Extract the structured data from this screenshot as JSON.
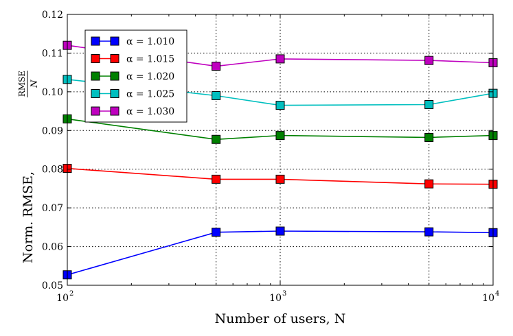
{
  "chart_data": {
    "type": "line",
    "title": "",
    "xlabel": "Number of users, N",
    "ylabel": "Norm. RMSE, RMSE / N",
    "ylabel_parts": {
      "main": "Norm. RMSE,",
      "numerator": "RMSE",
      "denominator": "N"
    },
    "xscale": "log",
    "xlim": [
      100,
      10000
    ],
    "ylim": [
      0.05,
      0.12
    ],
    "grid": true,
    "legend_position": "top-left",
    "x": [
      100,
      500,
      1000,
      5000,
      10000
    ],
    "x_ticks": [
      {
        "value": 100,
        "base": "10",
        "exp": "2"
      },
      {
        "value": 1000,
        "base": "10",
        "exp": "3"
      },
      {
        "value": 10000,
        "base": "10",
        "exp": "4"
      }
    ],
    "y_ticks": [
      "0.05",
      "0.06",
      "0.07",
      "0.08",
      "0.09",
      "0.10",
      "0.11",
      "0.12"
    ],
    "series": [
      {
        "name": "α = 1.010",
        "color": "#0000ff",
        "values": [
          0.0527,
          0.0637,
          0.064,
          0.0638,
          0.0636
        ]
      },
      {
        "name": "α = 1.015",
        "color": "#ff0000",
        "values": [
          0.0802,
          0.0774,
          0.0774,
          0.0762,
          0.0761
        ]
      },
      {
        "name": "α = 1.020",
        "color": "#008000",
        "values": [
          0.093,
          0.0877,
          0.0887,
          0.0882,
          0.0887
        ]
      },
      {
        "name": "α = 1.025",
        "color": "#00bfbf",
        "values": [
          0.1032,
          0.099,
          0.0965,
          0.0967,
          0.0996
        ]
      },
      {
        "name": "α = 1.030",
        "color": "#bf00bf",
        "values": [
          0.112,
          0.1066,
          0.1085,
          0.1081,
          0.1075
        ]
      }
    ]
  }
}
